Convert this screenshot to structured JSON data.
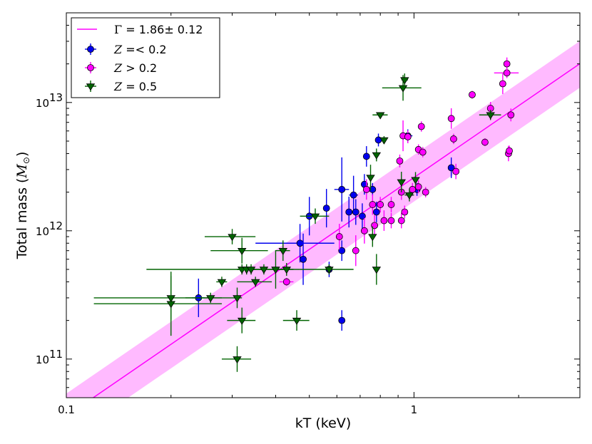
{
  "chart_data": {
    "type": "scatter",
    "xscale": "log",
    "yscale": "log",
    "xlim": [
      0.1,
      3.0
    ],
    "ylim": [
      50000000000.0,
      50000000000000.0
    ],
    "xlabel": "kT (keV)",
    "ylabel_main": "Total mass (",
    "ylabel_sym": "M",
    "ylabel_sub": "⊙",
    "ylabel_close": ")",
    "x_tick_labels": [
      {
        "value": 0.1,
        "label": "0.1"
      },
      {
        "value": 1,
        "label": "1"
      }
    ],
    "y_tick_labels": [
      {
        "value": 100000000000.0,
        "base": "10",
        "exp": "11"
      },
      {
        "value": 1000000000000.0,
        "base": "10",
        "exp": "12"
      },
      {
        "value": 10000000000000.0,
        "base": "10",
        "exp": "13"
      }
    ],
    "grid": false,
    "legend_position": "top-left",
    "fit": {
      "label_symbol": "Γ",
      "label_value": " =  1.86± 0.12",
      "anchor": {
        "x": 1.0,
        "y": 2600000000000.0
      },
      "slope": 1.86,
      "band_factor_low": 0.65,
      "band_factor_high": 1.5,
      "color": "#ff00ff",
      "band_color": "#ff9cff"
    },
    "series": [
      {
        "name_var": "Z",
        "name_rest": " =< 0.2",
        "color": "#0000ee",
        "marker": "circle",
        "points": [
          {
            "x": 0.24,
            "y": 300000000000.0,
            "xerr": 0.01,
            "yerr": 0.15
          },
          {
            "x": 0.47,
            "y": 800000000000.0,
            "xerr": 0.12,
            "yerr": 0.15
          },
          {
            "x": 0.48,
            "y": 600000000000.0,
            "xerr": 0.01,
            "yerr": 0.2
          },
          {
            "x": 0.5,
            "y": 1300000000000.0,
            "xerr": 0.01,
            "yerr": 0.15
          },
          {
            "x": 0.56,
            "y": 1500000000000.0,
            "xerr": 0.01,
            "yerr": 0.15
          },
          {
            "x": 0.57,
            "y": 500000000000.0,
            "xerr": 0.01,
            "yerr": 0.06
          },
          {
            "x": 0.62,
            "y": 2100000000000.0,
            "xerr": 0.03,
            "yerr": 0.25
          },
          {
            "x": 0.62,
            "y": 700000000000.0,
            "xerr": 0.01,
            "yerr": 0.08
          },
          {
            "x": 0.62,
            "y": 200000000000.0,
            "xerr": 0.01,
            "yerr": 0.08
          },
          {
            "x": 0.65,
            "y": 1400000000000.0,
            "xerr": 0.01,
            "yerr": 0.12
          },
          {
            "x": 0.67,
            "y": 1900000000000.0,
            "xerr": 0.02,
            "yerr": 0.15
          },
          {
            "x": 0.68,
            "y": 1400000000000.0,
            "xerr": 0.01,
            "yerr": 0.1
          },
          {
            "x": 0.71,
            "y": 1300000000000.0,
            "xerr": 0.01,
            "yerr": 0.1
          },
          {
            "x": 0.72,
            "y": 2300000000000.0,
            "xerr": 0.01,
            "yerr": 0.08
          },
          {
            "x": 0.73,
            "y": 3800000000000.0,
            "xerr": 0.01,
            "yerr": 0.08
          },
          {
            "x": 0.76,
            "y": 2100000000000.0,
            "xerr": 0.01,
            "yerr": 0.05
          },
          {
            "x": 0.78,
            "y": 1400000000000.0,
            "xerr": 0.01,
            "yerr": 0.08
          },
          {
            "x": 0.79,
            "y": 5100000000000.0,
            "xerr": 0.01,
            "yerr": 0.05
          },
          {
            "x": 0.96,
            "y": 5500000000000.0,
            "xerr": 0.03,
            "yerr": 0.05
          },
          {
            "x": 1.02,
            "y": 2100000000000.0,
            "xerr": 0.01,
            "yerr": 0.05
          },
          {
            "x": 1.28,
            "y": 3100000000000.0,
            "xerr": 0.01,
            "yerr": 0.08
          }
        ]
      },
      {
        "name_var": "Z",
        "name_rest": " > 0.2",
        "color": "#ff00ff",
        "marker": "circle",
        "points": [
          {
            "x": 0.43,
            "y": 400000000000.0,
            "xerr": 0.02,
            "yerr": 0.03
          },
          {
            "x": 0.61,
            "y": 900000000000.0,
            "xerr": 0.01,
            "yerr": 0.1
          },
          {
            "x": 0.68,
            "y": 700000000000.0,
            "xerr": 0.01,
            "yerr": 0.12
          },
          {
            "x": 0.72,
            "y": 1000000000000.0,
            "xerr": 0.01,
            "yerr": 0.1
          },
          {
            "x": 0.73,
            "y": 2100000000000.0,
            "xerr": 0.01,
            "yerr": 0.08
          },
          {
            "x": 0.76,
            "y": 1600000000000.0,
            "xerr": 0.01,
            "yerr": 0.08
          },
          {
            "x": 0.77,
            "y": 1100000000000.0,
            "xerr": 0.01,
            "yerr": 0.08
          },
          {
            "x": 0.8,
            "y": 1600000000000.0,
            "xerr": 0.01,
            "yerr": 0.06
          },
          {
            "x": 0.82,
            "y": 1200000000000.0,
            "xerr": 0.01,
            "yerr": 0.08
          },
          {
            "x": 0.86,
            "y": 1600000000000.0,
            "xerr": 0.01,
            "yerr": 0.06
          },
          {
            "x": 0.86,
            "y": 1200000000000.0,
            "xerr": 0.01,
            "yerr": 0.06
          },
          {
            "x": 0.91,
            "y": 3500000000000.0,
            "xerr": 0.01,
            "yerr": 0.05
          },
          {
            "x": 0.92,
            "y": 2000000000000.0,
            "xerr": 0.01,
            "yerr": 0.06
          },
          {
            "x": 0.92,
            "y": 1200000000000.0,
            "xerr": 0.01,
            "yerr": 0.06
          },
          {
            "x": 0.93,
            "y": 5500000000000.0,
            "xerr": 0.02,
            "yerr": 0.12
          },
          {
            "x": 0.94,
            "y": 1400000000000.0,
            "xerr": 0.01,
            "yerr": 0.05
          },
          {
            "x": 0.96,
            "y": 5400000000000.0,
            "xerr": 0.01,
            "yerr": 0.05
          },
          {
            "x": 0.99,
            "y": 2100000000000.0,
            "xerr": 0.01,
            "yerr": 0.05
          },
          {
            "x": 1.03,
            "y": 2200000000000.0,
            "xerr": 0.01,
            "yerr": 0.05
          },
          {
            "x": 1.03,
            "y": 4300000000000.0,
            "xerr": 0.01,
            "yerr": 0.04
          },
          {
            "x": 1.05,
            "y": 6500000000000.0,
            "xerr": 0.01,
            "yerr": 0.04
          },
          {
            "x": 1.06,
            "y": 4100000000000.0,
            "xerr": 0.01,
            "yerr": 0.04
          },
          {
            "x": 1.08,
            "y": 2000000000000.0,
            "xerr": 0.01,
            "yerr": 0.04
          },
          {
            "x": 1.28,
            "y": 7500000000000.0,
            "xerr": 0.01,
            "yerr": 0.08
          },
          {
            "x": 1.3,
            "y": 5200000000000.0,
            "xerr": 0.01,
            "yerr": 0.04
          },
          {
            "x": 1.32,
            "y": 2900000000000.0,
            "xerr": 0.01,
            "yerr": 0.06
          },
          {
            "x": 1.47,
            "y": 11500000000000.0,
            "xerr": 0.02,
            "yerr": 0.03
          },
          {
            "x": 1.6,
            "y": 4900000000000.0,
            "xerr": 0.01,
            "yerr": 0.03
          },
          {
            "x": 1.66,
            "y": 9000000000000.0,
            "xerr": 0.02,
            "yerr": 0.05
          },
          {
            "x": 1.8,
            "y": 14000000000000.0,
            "xerr": 0.01,
            "yerr": 0.08
          },
          {
            "x": 1.85,
            "y": 17000000000000.0,
            "xerr": 0.15,
            "yerr": 0.04
          },
          {
            "x": 1.85,
            "y": 20000000000000.0,
            "xerr": 0.01,
            "yerr": 0.05
          },
          {
            "x": 1.87,
            "y": 4000000000000.0,
            "xerr": 0.01,
            "yerr": 0.06
          },
          {
            "x": 1.88,
            "y": 4200000000000.0,
            "xerr": 0.01,
            "yerr": 0.04
          },
          {
            "x": 1.9,
            "y": 8000000000000.0,
            "xerr": 0.01,
            "yerr": 0.05
          }
        ]
      },
      {
        "name_var": "Z",
        "name_rest": " = 0.5",
        "color": "#006400",
        "marker": "triangle-down",
        "points": [
          {
            "x": 0.2,
            "y": 300000000000.0,
            "xerr": 0.08,
            "yerr": 0.17
          },
          {
            "x": 0.2,
            "y": 270000000000.0,
            "xerr": 0.08,
            "yerr": 0.25
          },
          {
            "x": 0.26,
            "y": 300000000000.0,
            "xerr": 0.04,
            "yerr": 0.04
          },
          {
            "x": 0.28,
            "y": 400000000000.0,
            "xerr": 0.01,
            "yerr": 0.04
          },
          {
            "x": 0.3,
            "y": 900000000000.0,
            "xerr": 0.05,
            "yerr": 0.06
          },
          {
            "x": 0.31,
            "y": 300000000000.0,
            "xerr": 0.01,
            "yerr": 0.08
          },
          {
            "x": 0.31,
            "y": 100000000000.0,
            "xerr": 0.03,
            "yerr": 0.1
          },
          {
            "x": 0.32,
            "y": 700000000000.0,
            "xerr": 0.06,
            "yerr": 0.1
          },
          {
            "x": 0.32,
            "y": 500000000000.0,
            "xerr": 0.15,
            "yerr": 0.04
          },
          {
            "x": 0.32,
            "y": 200000000000.0,
            "xerr": 0.03,
            "yerr": 0.1
          },
          {
            "x": 0.33,
            "y": 500000000000.0,
            "xerr": 0.02,
            "yerr": 0.04
          },
          {
            "x": 0.34,
            "y": 500000000000.0,
            "xerr": 0.03,
            "yerr": 0.04
          },
          {
            "x": 0.35,
            "y": 400000000000.0,
            "xerr": 0.04,
            "yerr": 0.04
          },
          {
            "x": 0.37,
            "y": 500000000000.0,
            "xerr": 0.01,
            "yerr": 0.04
          },
          {
            "x": 0.4,
            "y": 500000000000.0,
            "xerr": 0.02,
            "yerr": 0.15
          },
          {
            "x": 0.42,
            "y": 700000000000.0,
            "xerr": 0.02,
            "yerr": 0.08
          },
          {
            "x": 0.43,
            "y": 500000000000.0,
            "xerr": 0.02,
            "yerr": 0.05
          },
          {
            "x": 0.46,
            "y": 200000000000.0,
            "xerr": 0.04,
            "yerr": 0.08
          },
          {
            "x": 0.52,
            "y": 1300000000000.0,
            "xerr": 0.05,
            "yerr": 0.06
          },
          {
            "x": 0.57,
            "y": 500000000000.0,
            "xerr": 0.1,
            "yerr": 0.04
          },
          {
            "x": 0.75,
            "y": 2600000000000.0,
            "xerr": 0.01,
            "yerr": 0.1
          },
          {
            "x": 0.76,
            "y": 900000000000.0,
            "xerr": 0.01,
            "yerr": 0.08
          },
          {
            "x": 0.78,
            "y": 3900000000000.0,
            "xerr": 0.01,
            "yerr": 0.05
          },
          {
            "x": 0.78,
            "y": 500000000000.0,
            "xerr": 0.01,
            "yerr": 0.12
          },
          {
            "x": 0.8,
            "y": 8000000000000.0,
            "xerr": 0.04,
            "yerr": 0.02
          },
          {
            "x": 0.82,
            "y": 5100000000000.0,
            "xerr": 0.01,
            "yerr": 0.03
          },
          {
            "x": 0.92,
            "y": 2400000000000.0,
            "xerr": 0.01,
            "yerr": 0.08
          },
          {
            "x": 0.93,
            "y": 13000000000000.0,
            "xerr": 0.12,
            "yerr": 0.1
          },
          {
            "x": 0.94,
            "y": 15000000000000.0,
            "xerr": 0.02,
            "yerr": 0.05
          },
          {
            "x": 0.97,
            "y": 1900000000000.0,
            "xerr": 0.03,
            "yerr": 0.05
          },
          {
            "x": 1.01,
            "y": 2500000000000.0,
            "xerr": 0.01,
            "yerr": 0.06
          },
          {
            "x": 1.66,
            "y": 8000000000000.0,
            "xerr": 0.12,
            "yerr": 0.04
          }
        ]
      }
    ]
  }
}
